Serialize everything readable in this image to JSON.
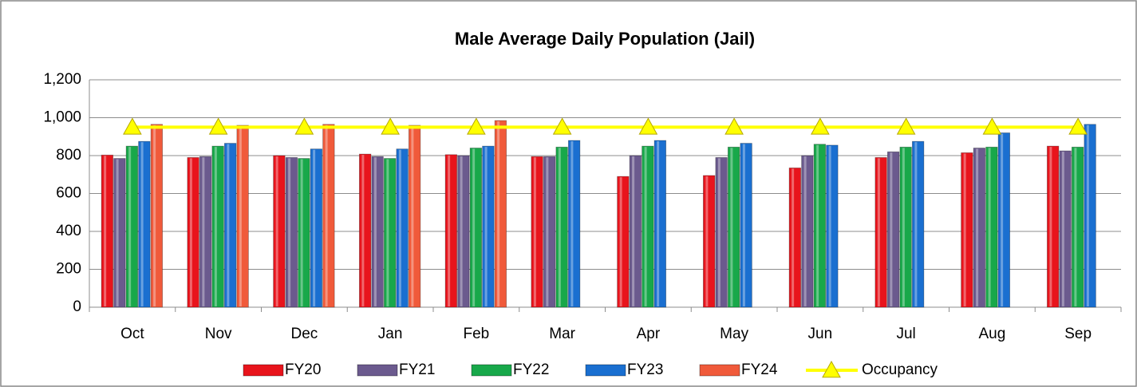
{
  "chart_data": {
    "type": "bar",
    "title": "Male Average Daily Population (Jail)",
    "categories": [
      "Oct",
      "Nov",
      "Dec",
      "Jan",
      "Feb",
      "Mar",
      "Apr",
      "May",
      "Jun",
      "Jul",
      "Aug",
      "Sep"
    ],
    "series": [
      {
        "name": "FY20",
        "color": "#e8141c",
        "values": [
          803,
          790,
          800,
          808,
          805,
          795,
          690,
          695,
          735,
          790,
          815,
          850
        ]
      },
      {
        "name": "FY21",
        "color": "#6b5a8e",
        "values": [
          785,
          795,
          790,
          795,
          800,
          795,
          800,
          790,
          800,
          820,
          840,
          825
        ]
      },
      {
        "name": "FY22",
        "color": "#18a84a",
        "values": [
          850,
          850,
          785,
          785,
          840,
          845,
          850,
          845,
          860,
          845,
          845,
          845
        ]
      },
      {
        "name": "FY23",
        "color": "#1a6fd0",
        "values": [
          875,
          865,
          835,
          835,
          850,
          880,
          880,
          865,
          855,
          875,
          920,
          965
        ]
      },
      {
        "name": "FY24",
        "color": "#f05a3a",
        "values": [
          965,
          960,
          965,
          960,
          985,
          null,
          null,
          null,
          null,
          null,
          null,
          null
        ]
      },
      {
        "name": "Occupancy",
        "color": "#ffff00",
        "type": "line",
        "marker": "triangle",
        "values": [
          950,
          950,
          950,
          950,
          950,
          950,
          950,
          950,
          950,
          950,
          950,
          950
        ]
      }
    ],
    "ylim": [
      0,
      1200
    ],
    "yticks": [
      0,
      200,
      400,
      600,
      800,
      {
        "value": 1000,
        "label": "1,000"
      },
      {
        "value": 1200,
        "label": "1,200"
      }
    ],
    "grid": true,
    "legend": "bottom"
  }
}
